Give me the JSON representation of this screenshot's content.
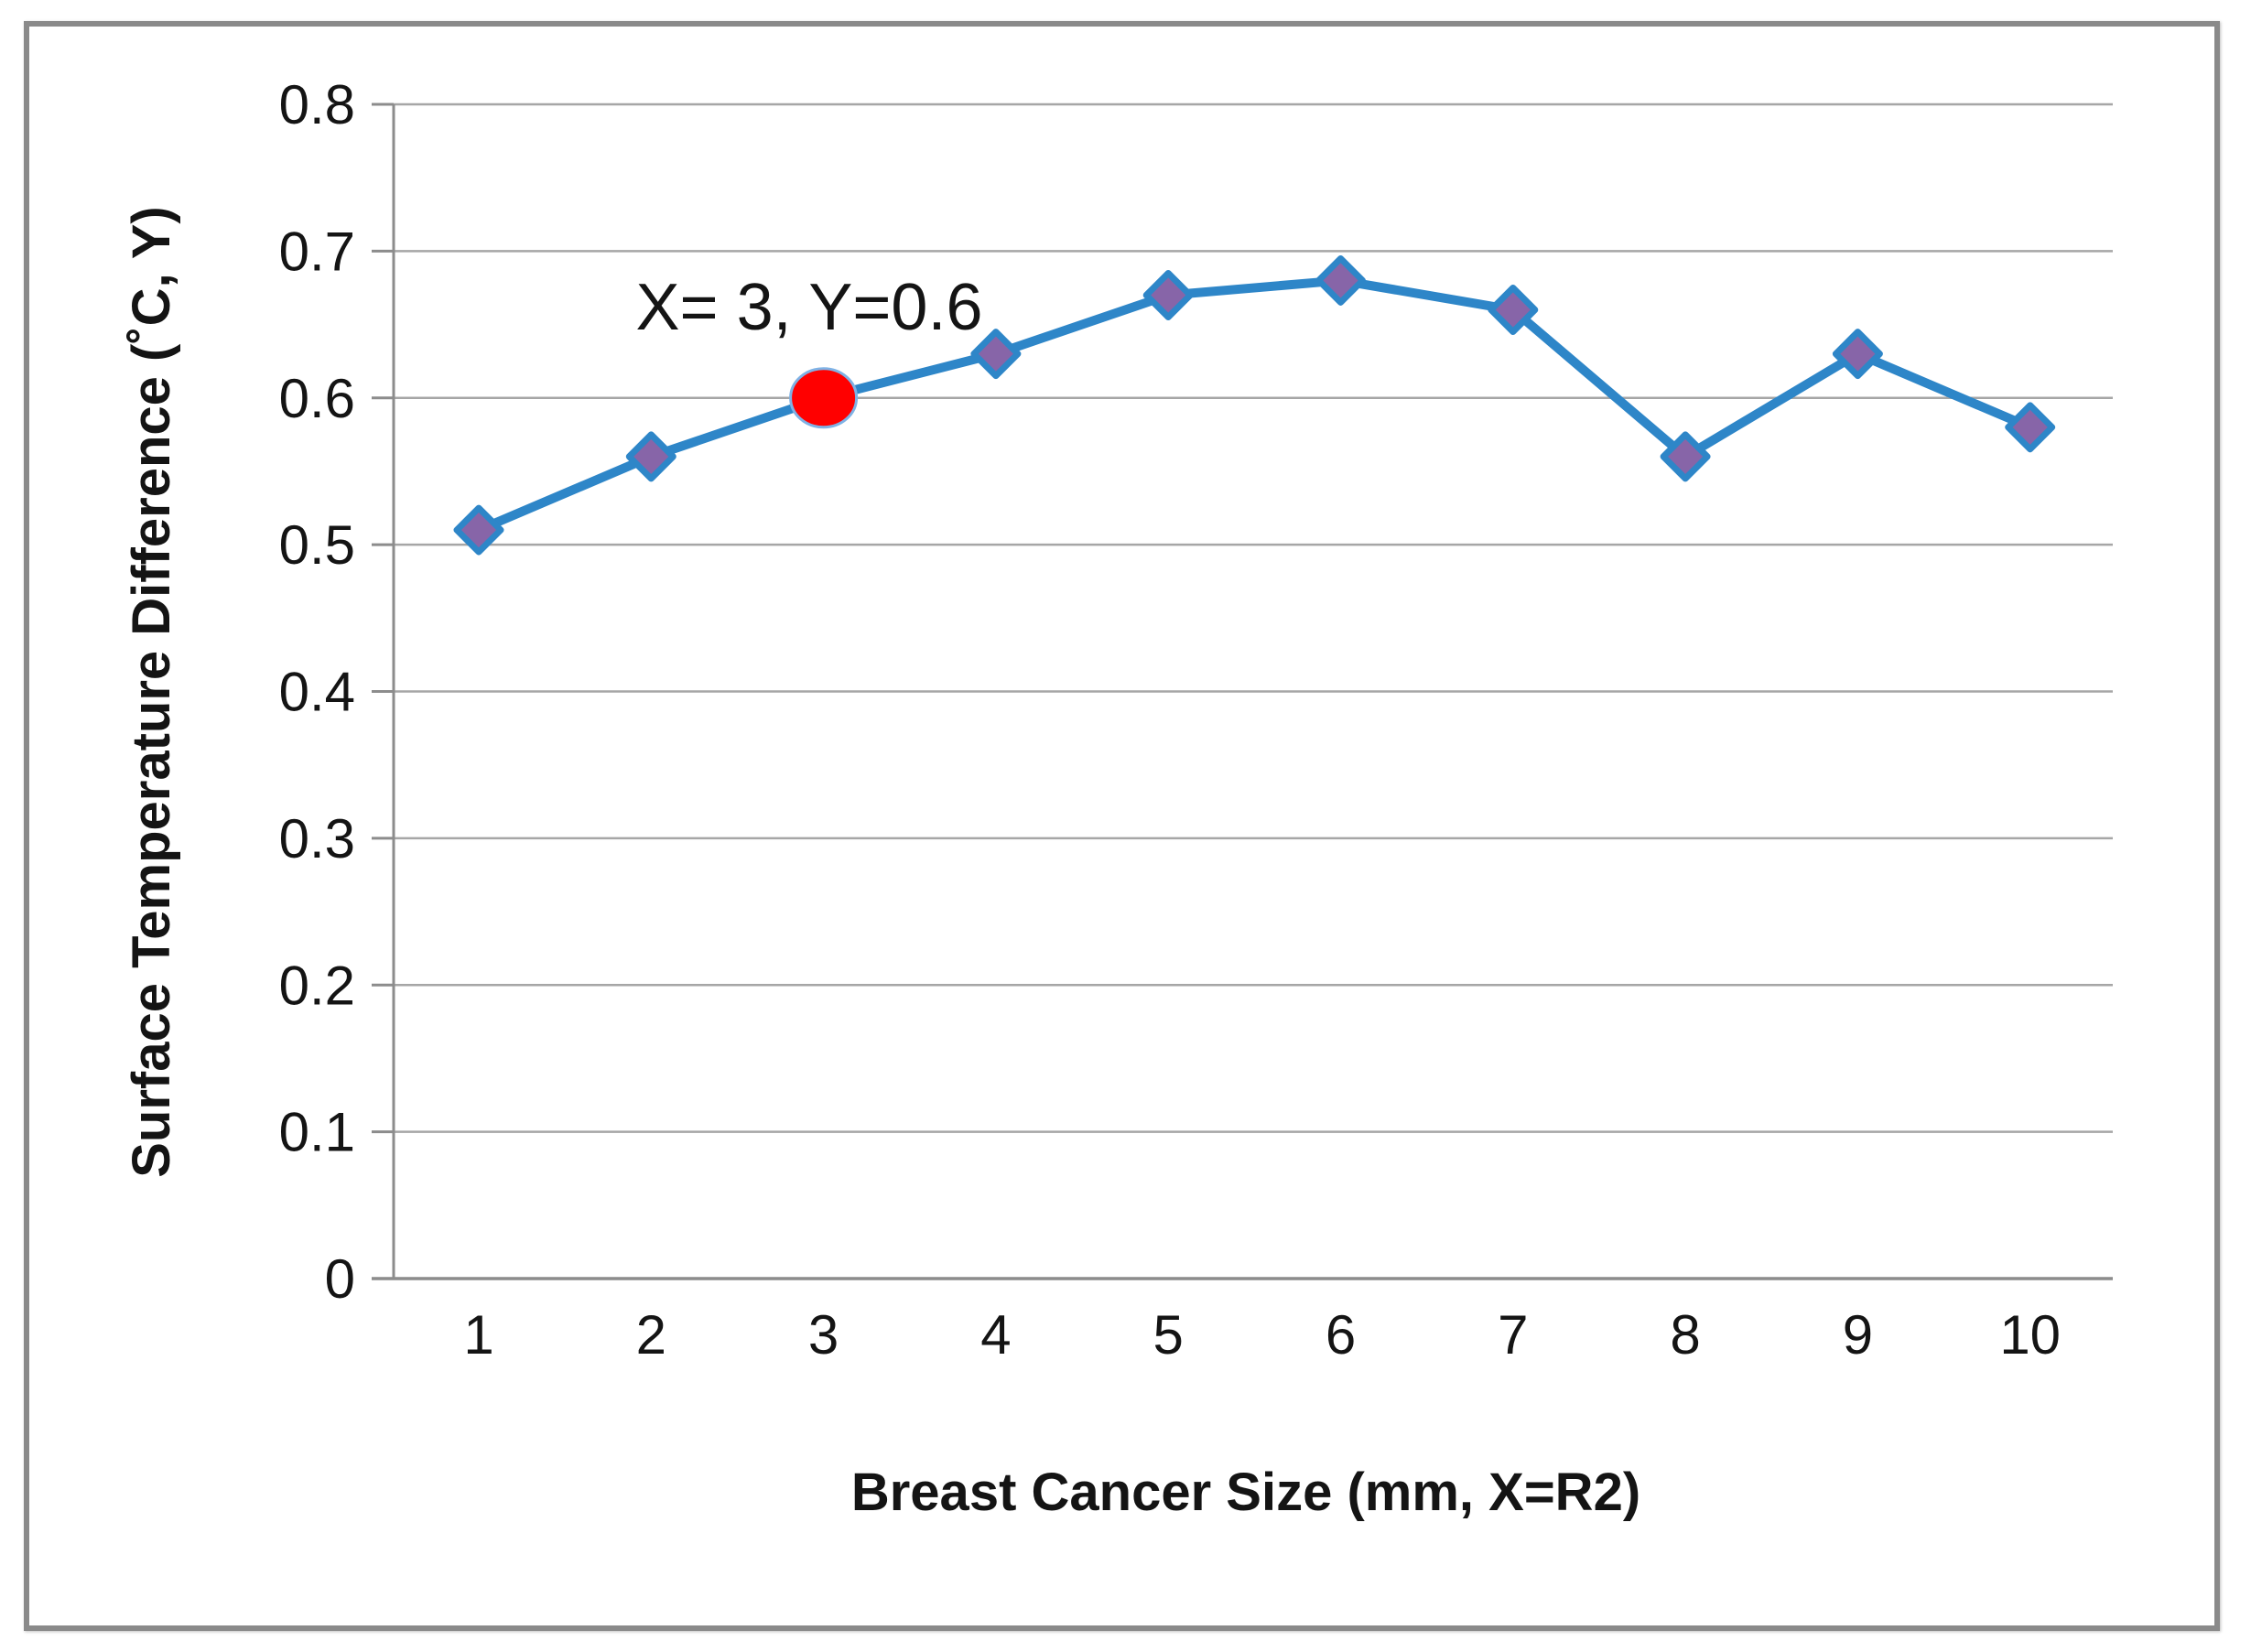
{
  "chart_data": {
    "type": "line",
    "title": "",
    "x": [
      1,
      2,
      3,
      4,
      5,
      6,
      7,
      8,
      9,
      10
    ],
    "x_tick_labels": [
      "1",
      "2",
      "3",
      "4",
      "5",
      "6",
      "7",
      "8",
      "9",
      "10"
    ],
    "y": [
      0.51,
      0.56,
      0.6,
      0.63,
      0.67,
      0.68,
      0.66,
      0.56,
      0.63,
      0.58
    ],
    "y_ticks": [
      0,
      0.1,
      0.2,
      0.3,
      0.4,
      0.5,
      0.6,
      0.7,
      0.8
    ],
    "y_tick_labels": [
      "0",
      "0.1",
      "0.2",
      "0.3",
      "0.4",
      "0.5",
      "0.6",
      "0.7",
      "0.8"
    ],
    "ylim": [
      0,
      0.8
    ],
    "xlabel": "Breast Cancer Size (mm, X=R2)",
    "ylabel": "Surface Temperature Difference (˚C, Y)",
    "grid": "horizontal",
    "legend_position": "none",
    "annotation": {
      "text": "X= 3, Y=0.6",
      "at_x": 3,
      "at_y": 0.6
    },
    "highlight_point": {
      "x": 3,
      "y": 0.6
    },
    "colors": {
      "line": "#2E86C8",
      "marker_fill": "#8765A8",
      "marker_stroke": "#2E86C8",
      "highlight_fill": "#FF0000",
      "highlight_stroke": "#7FB2E5",
      "gridline": "#A6A6A6",
      "axis": "#8C8C8C",
      "text": "#141414",
      "frame_border": "#8A8A8A",
      "background": "#FFFFFF"
    }
  }
}
